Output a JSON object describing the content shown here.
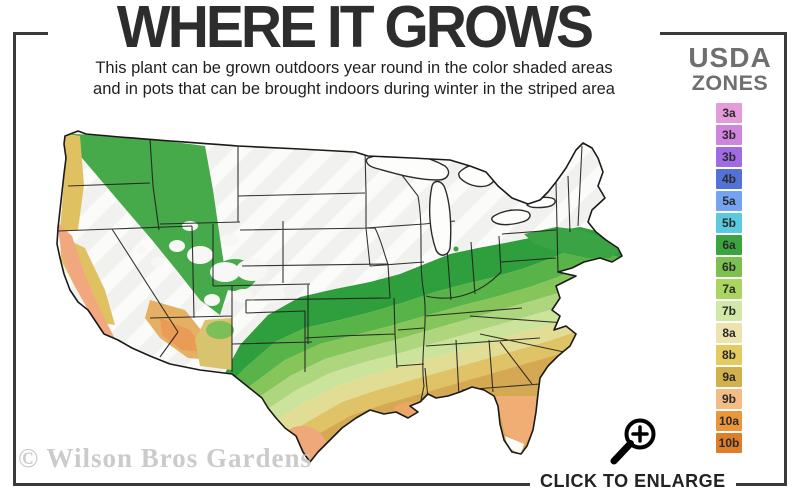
{
  "header": {
    "title": "WHERE IT GROWS",
    "subtitle_line1": "This plant can be grown outdoors year round in the color shaded areas",
    "subtitle_line2": "and in pots that can be brought indoors during winter in the striped area"
  },
  "legend": {
    "title_line1": "USDA",
    "title_line2": "ZONES",
    "zones": [
      {
        "label": "3a",
        "color": "#e39cd7"
      },
      {
        "label": "3b",
        "color": "#cf85dd"
      },
      {
        "label": "3b",
        "color": "#9f6ce4"
      },
      {
        "label": "4b",
        "color": "#5272d8"
      },
      {
        "label": "5a",
        "color": "#74a3f2"
      },
      {
        "label": "5b",
        "color": "#5bc9de"
      },
      {
        "label": "6a",
        "color": "#3ba43f"
      },
      {
        "label": "6b",
        "color": "#7cc14f"
      },
      {
        "label": "7a",
        "color": "#aad55f"
      },
      {
        "label": "7b",
        "color": "#d2e8a8"
      },
      {
        "label": "8a",
        "color": "#ece3ae"
      },
      {
        "label": "8b",
        "color": "#e3cb5f"
      },
      {
        "label": "9a",
        "color": "#d1b14b"
      },
      {
        "label": "9b",
        "color": "#f3bd85"
      },
      {
        "label": "10a",
        "color": "#ec963b"
      },
      {
        "label": "10b",
        "color": "#dd7f28"
      }
    ]
  },
  "map": {
    "watermark": "© Wilson Bros Gardens",
    "region": "Continental United States hardiness zone map",
    "striped_area_color": "#f1f1ef",
    "band_colors": [
      "#2f9e3c",
      "#58b449",
      "#85c55a",
      "#aed67e",
      "#cce39b",
      "#e2dd95",
      "#e0c367",
      "#d5a954",
      "#efa879"
    ]
  },
  "footer": {
    "enlarge_label": "CLICK TO ENLARGE"
  }
}
